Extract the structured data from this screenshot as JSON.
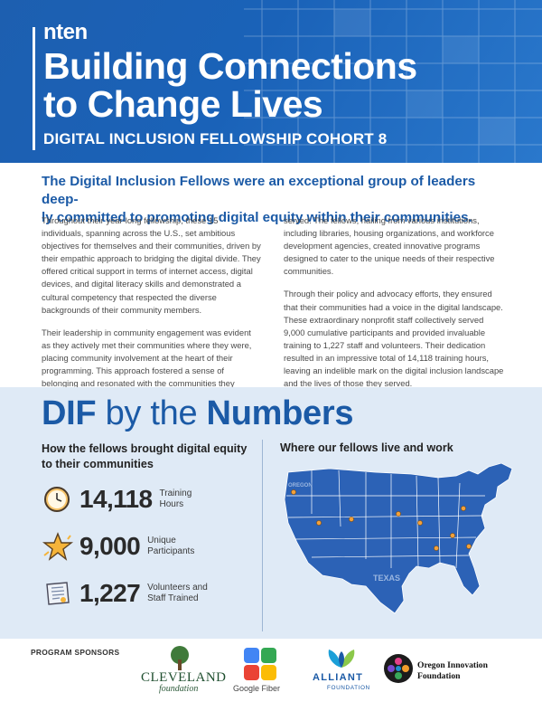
{
  "header": {
    "logo": "nten",
    "title_line1": "Building Connections",
    "title_line2": "to Change Lives",
    "subtitle": "DIGITAL INCLUSION FELLOWSHIP COHORT 8"
  },
  "intro": {
    "lead_line1": "The Digital Inclusion Fellows were an exceptional group of leaders deep-",
    "lead_line2": "ly committed to promoting digital equity within their communities.",
    "left_col": [
      "Throughout their year-long fellowship, these 15 individuals, spanning across the U.S., set ambitious objectives for themselves and their communities, driven by their empathic approach to bridging the digital divide. They offered critical support in terms of internet access, digital devices, and digital literacy skills and demonstrated a cultural competency that respected the diverse backgrounds of their community members.",
      "Their leadership in community engagement was evident as they actively met their communities where they were, placing community involvement at the heart of their programming. This approach fostered a sense of belonging and resonated with the communities they"
    ],
    "right_col": [
      "served. The fellows, hailing from various institutions, including libraries, housing organizations, and workforce development agencies, created innovative programs designed to cater to the unique needs of their respective communities.",
      "Through their policy and advocacy efforts, they ensured that their communities had a voice in the digital landscape. These extraordinary nonprofit staff collectively served 9,000 cumulative participants and provided invaluable training to 1,227 staff and volunteers. Their dedication resulted in an impressive total of 14,118 training hours, leaving an indelible mark on the digital inclusion landscape and the lives of those they served."
    ]
  },
  "numbers": {
    "title_part1": "DIF",
    "title_part2": " by the ",
    "title_part3": "Numbers",
    "left_heading": "How the fellows brought digital equity to their communities",
    "right_heading": "Where our fellows live and work",
    "stats": [
      {
        "value": "14,118",
        "label_line1": "Training",
        "label_line2": "Hours",
        "icon": "clock-icon"
      },
      {
        "value": "9,000",
        "label_line1": "Unique",
        "label_line2": "Participants",
        "icon": "star-icon"
      },
      {
        "value": "1,227",
        "label_line1": "Volunteers and",
        "label_line2": "Staff Trained",
        "icon": "scroll-icon"
      }
    ],
    "map_labels": [
      "OREGON",
      "TEXAS"
    ]
  },
  "sponsors": {
    "label": "PROGRAM SPONSORS",
    "cleveland_name": "CLEVELAND",
    "cleveland_sub": "foundation",
    "google": "Google Fiber",
    "alliant_name": "ALLIANT",
    "alliant_sub": "FOUNDATION",
    "oregon_line1": "Oregon Innovation",
    "oregon_line2": "Foundation"
  },
  "colors": {
    "brand_blue": "#1b5aa6",
    "section_bg": "#dfeaf6",
    "map_blue": "#2c62b6",
    "pin_orange": "#f3a13a"
  }
}
